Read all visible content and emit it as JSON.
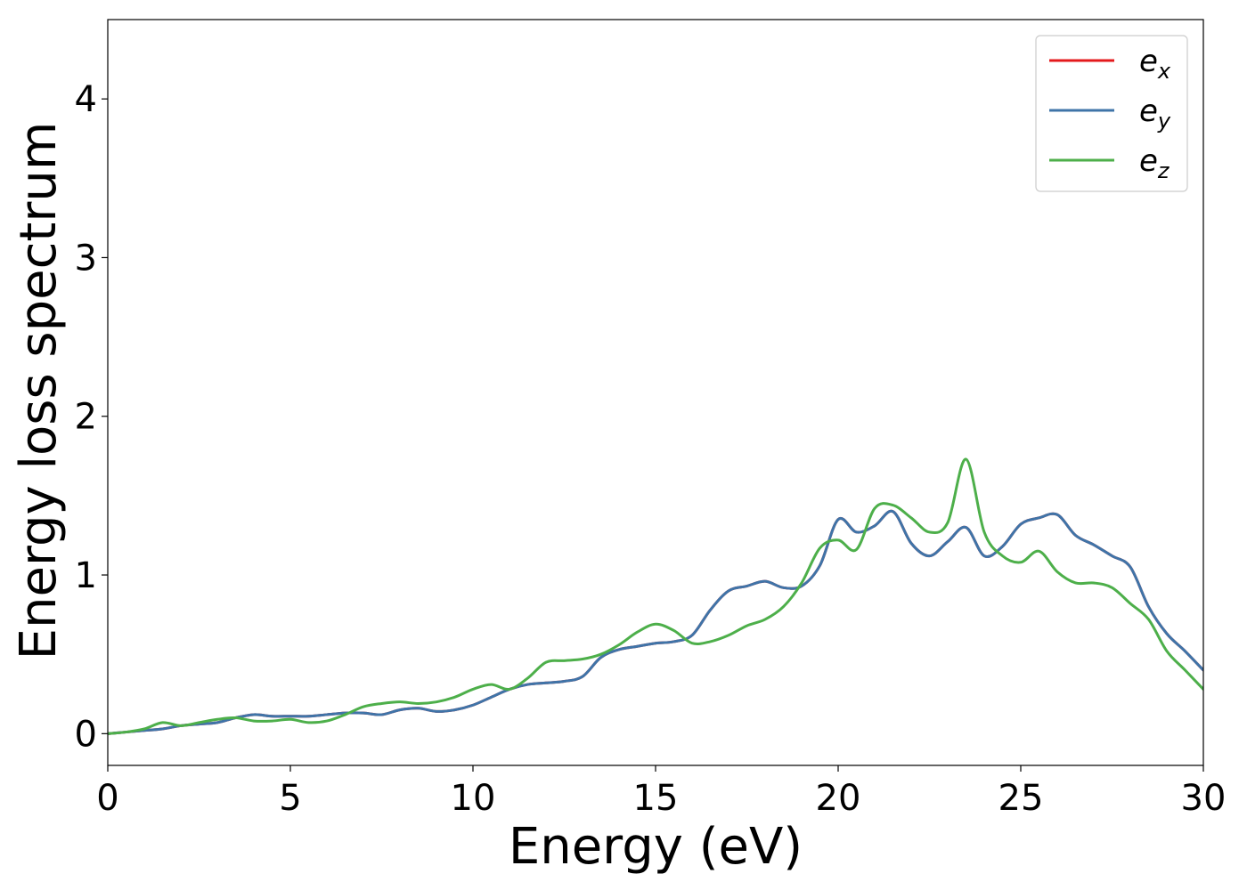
{
  "chart_data": {
    "type": "line",
    "xlabel": "Energy (eV)",
    "ylabel": "Energy loss spectrum",
    "xlim": [
      0,
      30
    ],
    "ylim": [
      -0.2,
      4.5
    ],
    "x_ticks": [
      0,
      5,
      10,
      15,
      20,
      25,
      30
    ],
    "y_ticks": [
      0,
      1,
      2,
      3,
      4
    ],
    "x_tick_labels": [
      "0",
      "5",
      "10",
      "15",
      "20",
      "25",
      "30"
    ],
    "y_tick_labels": [
      "0",
      "1",
      "2",
      "3",
      "4"
    ],
    "grid": false,
    "legend_position": "top-right",
    "series": [
      {
        "name": "e",
        "sub": "x",
        "color": "#e41a1c",
        "x": [
          0,
          0.5,
          1,
          1.5,
          2,
          2.5,
          3,
          3.5,
          4,
          4.5,
          5,
          5.5,
          6,
          6.5,
          7,
          7.5,
          8,
          8.5,
          9,
          9.5,
          10,
          10.5,
          11,
          11.5,
          12,
          12.5,
          13,
          13.5,
          14,
          14.5,
          15,
          15.5,
          16,
          16.5,
          17,
          17.5,
          18,
          18.5,
          19,
          19.5,
          20,
          20.5,
          21,
          21.5,
          22,
          22.5,
          23,
          23.5,
          24,
          24.5,
          25,
          25.5,
          26,
          26.5,
          27,
          27.5,
          28,
          28.5,
          29,
          29.5,
          30
        ],
        "y": [
          0,
          0.01,
          0.02,
          0.03,
          0.05,
          0.06,
          0.07,
          0.1,
          0.12,
          0.11,
          0.11,
          0.11,
          0.12,
          0.13,
          0.13,
          0.12,
          0.15,
          0.16,
          0.14,
          0.15,
          0.18,
          0.23,
          0.28,
          0.31,
          0.32,
          0.33,
          0.36,
          0.48,
          0.53,
          0.55,
          0.57,
          0.58,
          0.62,
          0.78,
          0.9,
          0.93,
          0.96,
          0.92,
          0.93,
          1.06,
          1.35,
          1.27,
          1.31,
          1.4,
          1.2,
          1.12,
          1.21,
          1.3,
          1.12,
          1.18,
          1.32,
          1.36,
          1.38,
          1.25,
          1.19,
          1.12,
          1.05,
          0.8,
          0.63,
          0.52,
          0.4
        ]
      },
      {
        "name": "e",
        "sub": "y",
        "color": "#3f74a8",
        "x": [
          0,
          0.5,
          1,
          1.5,
          2,
          2.5,
          3,
          3.5,
          4,
          4.5,
          5,
          5.5,
          6,
          6.5,
          7,
          7.5,
          8,
          8.5,
          9,
          9.5,
          10,
          10.5,
          11,
          11.5,
          12,
          12.5,
          13,
          13.5,
          14,
          14.5,
          15,
          15.5,
          16,
          16.5,
          17,
          17.5,
          18,
          18.5,
          19,
          19.5,
          20,
          20.5,
          21,
          21.5,
          22,
          22.5,
          23,
          23.5,
          24,
          24.5,
          25,
          25.5,
          26,
          26.5,
          27,
          27.5,
          28,
          28.5,
          29,
          29.5,
          30
        ],
        "y": [
          0,
          0.01,
          0.02,
          0.03,
          0.05,
          0.06,
          0.07,
          0.1,
          0.12,
          0.11,
          0.11,
          0.11,
          0.12,
          0.13,
          0.13,
          0.12,
          0.15,
          0.16,
          0.14,
          0.15,
          0.18,
          0.23,
          0.28,
          0.31,
          0.32,
          0.33,
          0.36,
          0.48,
          0.53,
          0.55,
          0.57,
          0.58,
          0.62,
          0.78,
          0.9,
          0.93,
          0.96,
          0.92,
          0.93,
          1.06,
          1.35,
          1.27,
          1.31,
          1.4,
          1.2,
          1.12,
          1.21,
          1.3,
          1.12,
          1.18,
          1.32,
          1.36,
          1.38,
          1.25,
          1.19,
          1.12,
          1.05,
          0.8,
          0.63,
          0.52,
          0.4
        ]
      },
      {
        "name": "e",
        "sub": "z",
        "color": "#4daf4a",
        "x": [
          0,
          0.5,
          1,
          1.5,
          2,
          2.5,
          3,
          3.5,
          4,
          4.5,
          5,
          5.5,
          6,
          6.5,
          7,
          7.5,
          8,
          8.5,
          9,
          9.5,
          10,
          10.5,
          11,
          11.5,
          12,
          12.5,
          13,
          13.5,
          14,
          14.5,
          15,
          15.5,
          16,
          16.5,
          17,
          17.5,
          18,
          18.5,
          19,
          19.5,
          20,
          20.5,
          21,
          21.5,
          22,
          22.5,
          23,
          23.5,
          24,
          24.5,
          25,
          25.5,
          26,
          26.5,
          27,
          27.5,
          28,
          28.5,
          29,
          29.5,
          30
        ],
        "y": [
          0,
          0.01,
          0.03,
          0.07,
          0.05,
          0.07,
          0.09,
          0.1,
          0.08,
          0.08,
          0.09,
          0.07,
          0.08,
          0.12,
          0.17,
          0.19,
          0.2,
          0.19,
          0.2,
          0.23,
          0.28,
          0.31,
          0.28,
          0.35,
          0.45,
          0.46,
          0.47,
          0.5,
          0.56,
          0.64,
          0.69,
          0.65,
          0.57,
          0.58,
          0.62,
          0.68,
          0.72,
          0.8,
          0.95,
          1.17,
          1.22,
          1.16,
          1.42,
          1.44,
          1.36,
          1.27,
          1.33,
          1.73,
          1.27,
          1.12,
          1.08,
          1.15,
          1.02,
          0.95,
          0.95,
          0.92,
          0.82,
          0.72,
          0.52,
          0.4,
          0.28
        ]
      }
    ]
  }
}
